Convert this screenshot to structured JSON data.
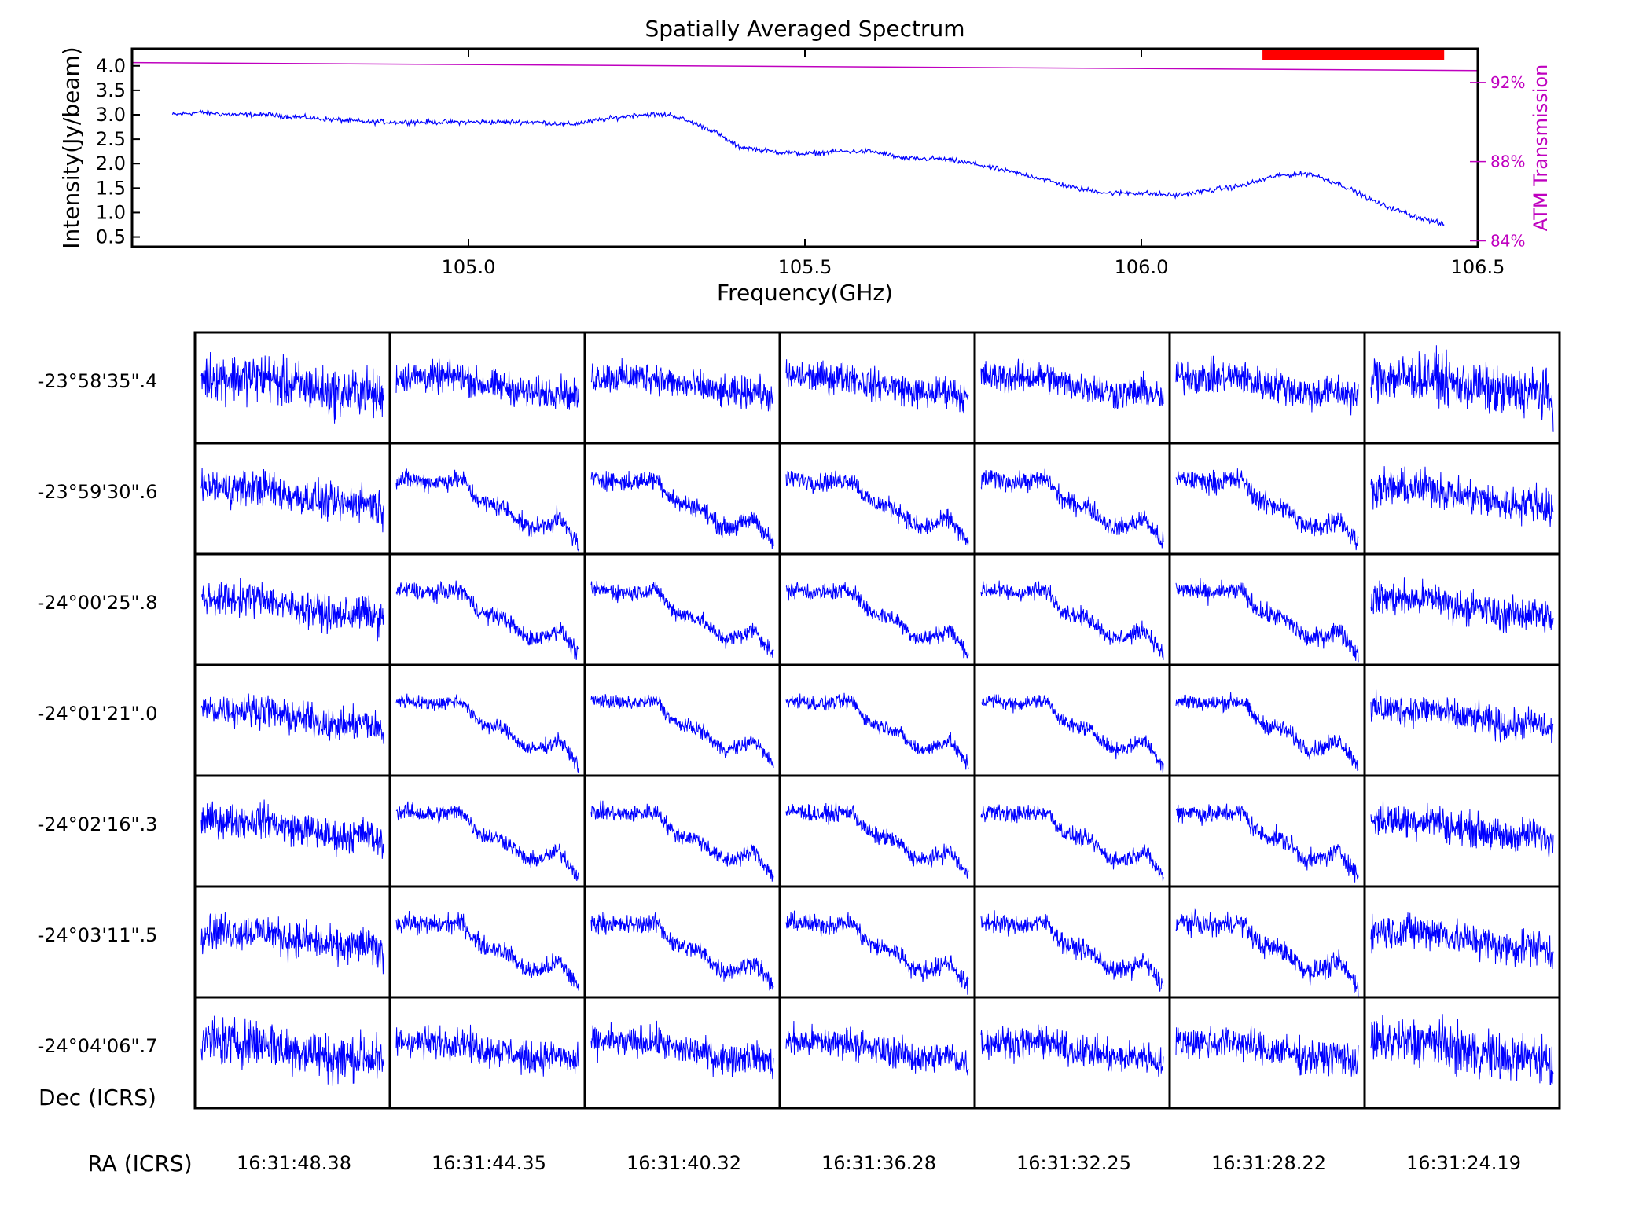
{
  "chart_data": [
    {
      "type": "line",
      "title": "Spatially Averaged Spectrum",
      "xlabel": "Frequency(GHz)",
      "ylabel": "Intensity(Jy/beam)",
      "y2label": "ATM Transmission",
      "xlim": [
        104.5,
        106.5
      ],
      "ylim": [
        0.3,
        4.35
      ],
      "y2lim": [
        83.7,
        93.7
      ],
      "xticks": [
        105.0,
        105.5,
        106.0,
        106.5
      ],
      "xtick_labels": [
        "105.0",
        "105.5",
        "106.0",
        "106.5"
      ],
      "yticks": [
        0.5,
        1.0,
        1.5,
        2.0,
        2.5,
        3.0,
        3.5,
        4.0
      ],
      "ytick_labels": [
        "0.5",
        "1.0",
        "1.5",
        "2.0",
        "2.5",
        "3.0",
        "3.5",
        "4.0"
      ],
      "y2ticks": [
        84,
        88,
        92
      ],
      "y2tick_labels": [
        "84%",
        "88%",
        "92%"
      ],
      "grid": false,
      "series": [
        {
          "role": "spectrum",
          "color": "#0000ff",
          "x": [
            104.56,
            104.6,
            104.65,
            104.7,
            104.75,
            104.8,
            104.85,
            104.9,
            104.95,
            105.0,
            105.05,
            105.1,
            105.15,
            105.2,
            105.25,
            105.3,
            105.33,
            105.36,
            105.4,
            105.45,
            105.5,
            105.55,
            105.6,
            105.65,
            105.7,
            105.75,
            105.8,
            105.85,
            105.9,
            105.95,
            106.0,
            106.05,
            106.1,
            106.15,
            106.2,
            106.25,
            106.3,
            106.35,
            106.4,
            106.45
          ],
          "y": [
            3.0,
            3.05,
            3.0,
            3.0,
            2.95,
            2.9,
            2.85,
            2.85,
            2.85,
            2.85,
            2.85,
            2.85,
            2.8,
            2.9,
            3.0,
            3.0,
            2.85,
            2.7,
            2.35,
            2.25,
            2.2,
            2.25,
            2.25,
            2.1,
            2.1,
            2.0,
            1.85,
            1.7,
            1.5,
            1.4,
            1.4,
            1.35,
            1.45,
            1.55,
            1.75,
            1.8,
            1.55,
            1.2,
            0.95,
            0.75
          ],
          "noise": 0.09
        },
        {
          "role": "atm_transmission",
          "color": "#bf00bf",
          "axis": "right",
          "x": [
            104.5,
            106.5
          ],
          "y": [
            93.0,
            92.6
          ]
        }
      ],
      "range_bar": {
        "x": [
          106.18,
          106.45
        ],
        "color": "#ff0000"
      }
    },
    {
      "type": "line",
      "layout": "grid",
      "rows": 7,
      "cols": 7,
      "ylabel": "Dec (ICRS)",
      "xlabel": "RA (ICRS)",
      "row_labels": [
        "-23°58'35\".4",
        "-23°59'30\".6",
        "-24°00'25\".8",
        "-24°01'21\".0",
        "-24°02'16\".3",
        "-24°03'11\".5",
        "-24°04'06\".7"
      ],
      "col_labels": [
        "16:31:48.38",
        "16:31:44.35",
        "16:31:40.32",
        "16:31:36.28",
        "16:31:32.25",
        "16:31:28.22",
        "16:31:24.19"
      ],
      "series_color": "#0000ff",
      "profile_shape_y": [
        0.72,
        0.73,
        0.72,
        0.7,
        0.7,
        0.71,
        0.72,
        0.72,
        0.58,
        0.5,
        0.48,
        0.46,
        0.4,
        0.3,
        0.25,
        0.27,
        0.3,
        0.35,
        0.22,
        0.1
      ],
      "panel_noise": [
        [
          0.2,
          0.13,
          0.13,
          0.13,
          0.13,
          0.14,
          0.2
        ],
        [
          0.15,
          0.08,
          0.08,
          0.08,
          0.08,
          0.09,
          0.15
        ],
        [
          0.14,
          0.07,
          0.07,
          0.07,
          0.07,
          0.08,
          0.14
        ],
        [
          0.13,
          0.06,
          0.06,
          0.06,
          0.06,
          0.07,
          0.13
        ],
        [
          0.14,
          0.07,
          0.07,
          0.07,
          0.07,
          0.08,
          0.14
        ],
        [
          0.15,
          0.08,
          0.08,
          0.08,
          0.08,
          0.09,
          0.15
        ],
        [
          0.2,
          0.13,
          0.13,
          0.13,
          0.13,
          0.14,
          0.2
        ]
      ]
    }
  ]
}
